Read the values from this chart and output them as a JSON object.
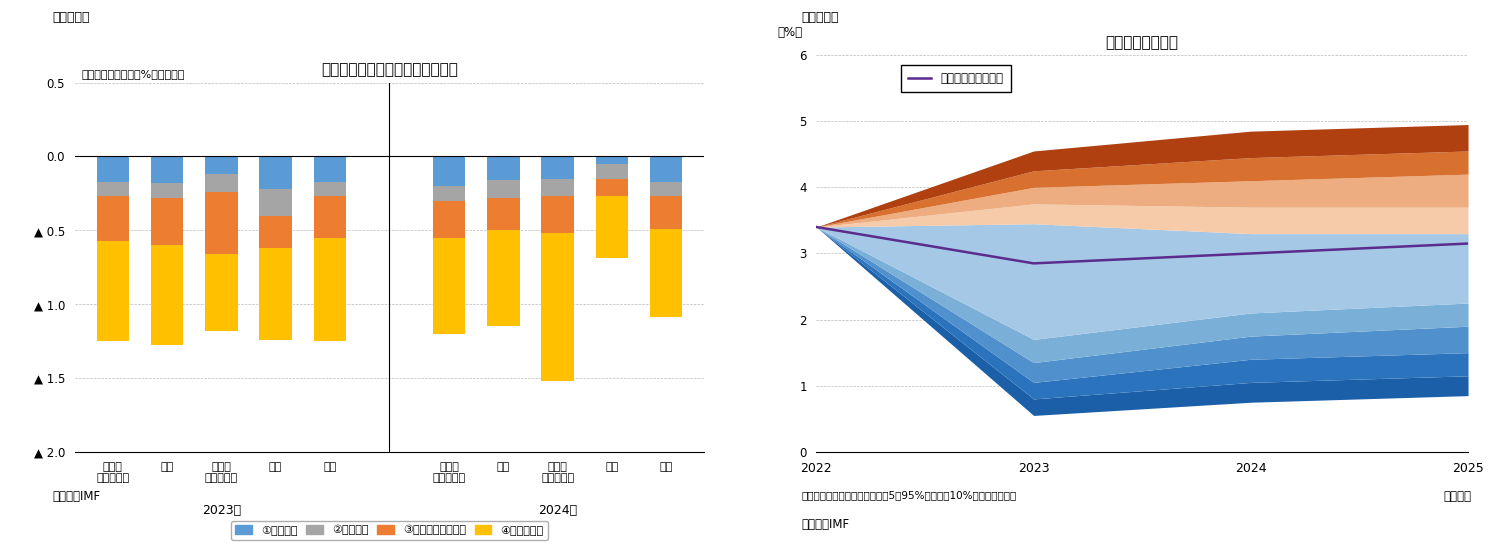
{
  "fig5_title": "リスクシナリオの成長率への影響",
  "fig5_subtitle": "（ベースライン比、%ポイント）",
  "fig5_label_top": "（図表５）",
  "fig5_source": "（資料）IMF",
  "fig5_categories_2023": [
    "先進国\n（除米国）",
    "米国",
    "新興国\n（除中国）",
    "中国",
    "世界"
  ],
  "fig5_categories_2024": [
    "先進国\n（除米国）",
    "米国",
    "新興国\n（除中国）",
    "中国",
    "世界"
  ],
  "fig5_year_labels": [
    "2023年",
    "2024年"
  ],
  "fig5_legend": [
    "①信用収縮",
    "②株価下落",
    "③ドル資産への逃避",
    "④景況感低下"
  ],
  "fig5_colors": [
    "#5B9BD5",
    "#A5A5A5",
    "#ED7D31",
    "#FFC000"
  ],
  "fig5_data_2023": {
    "credit_crunch": [
      -0.17,
      -0.18,
      -0.12,
      -0.22,
      -0.17
    ],
    "stock_fall": [
      -0.1,
      -0.1,
      -0.12,
      -0.18,
      -0.1
    ],
    "dollar_flight": [
      -0.3,
      -0.32,
      -0.42,
      -0.22,
      -0.28
    ],
    "sentiment": [
      -0.68,
      -0.68,
      -0.52,
      -0.62,
      -0.7
    ]
  },
  "fig5_data_2024": {
    "credit_crunch": [
      -0.2,
      -0.16,
      -0.15,
      -0.05,
      -0.17
    ],
    "stock_fall": [
      -0.1,
      -0.12,
      -0.12,
      -0.1,
      -0.1
    ],
    "dollar_flight": [
      -0.25,
      -0.22,
      -0.25,
      -0.12,
      -0.22
    ],
    "sentiment": [
      -0.65,
      -0.65,
      -1.0,
      -0.42,
      -0.6
    ]
  },
  "fig6_title": "成長率の不確実性",
  "fig6_label_top": "（図表６）",
  "fig6_ylabel": "（%）",
  "fig6_xlabel_note": "（注）網掛け部分は信頼区間（5～95%タイルを10%刻みで網掛け）",
  "fig6_source": "（資料）IMF",
  "fig6_year_label": "（年次）",
  "fig6_legend": "ベースライン見通し",
  "fig6_baseline": {
    "x": [
      2022,
      2023,
      2024,
      2025
    ],
    "y": [
      3.4,
      2.85,
      3.0,
      3.15
    ]
  },
  "fig6_bands": {
    "x": [
      2022,
      2023,
      2024,
      2025
    ],
    "p05": [
      3.4,
      0.55,
      0.75,
      0.85
    ],
    "p15": [
      3.4,
      0.8,
      1.05,
      1.15
    ],
    "p25": [
      3.4,
      1.05,
      1.4,
      1.5
    ],
    "p35": [
      3.4,
      1.35,
      1.75,
      1.9
    ],
    "p45": [
      3.4,
      1.7,
      2.1,
      2.25
    ],
    "p55": [
      3.4,
      3.45,
      3.3,
      3.3
    ],
    "p65": [
      3.4,
      3.75,
      3.7,
      3.7
    ],
    "p75": [
      3.4,
      4.0,
      4.1,
      4.2
    ],
    "p85": [
      3.4,
      4.25,
      4.45,
      4.55
    ],
    "p95": [
      3.4,
      4.55,
      4.85,
      4.95
    ]
  },
  "fig6_lower_colors": [
    "#1A5FA8",
    "#2B74BD",
    "#5090CC",
    "#7AAFD8",
    "#A4C8E5",
    "#C8DDF0"
  ],
  "fig6_upper_colors": [
    "#F5CBAA",
    "#EDAD80",
    "#D87030",
    "#B04010",
    "#8B2800"
  ]
}
